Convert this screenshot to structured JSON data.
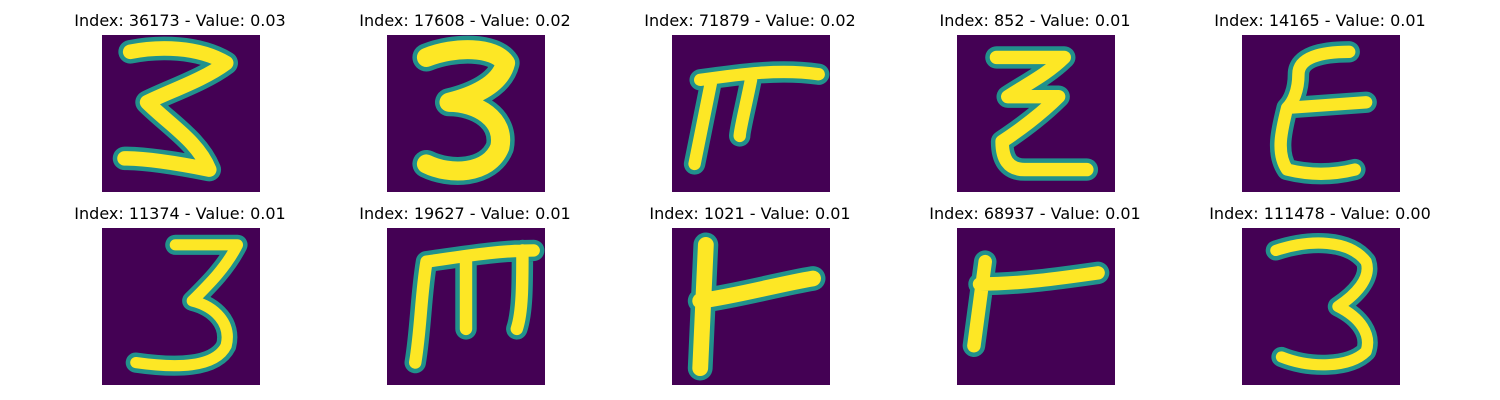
{
  "colors": {
    "background": "#440154",
    "stroke_main": "#fde725",
    "stroke_edge": "#21918c"
  },
  "panels": [
    {
      "title": "Index: 36173 - Value: 0.03",
      "glyph": "3"
    },
    {
      "title": "Index: 17608 - Value: 0.02",
      "glyph": "3"
    },
    {
      "title": "Index: 71879 - Value: 0.02",
      "glyph": "pi"
    },
    {
      "title": "Index: 852 - Value: 0.01",
      "glyph": "z"
    },
    {
      "title": "Index: 14165 - Value: 0.01",
      "glyph": "E"
    },
    {
      "title": "Index: 11374 - Value: 0.01",
      "glyph": "3"
    },
    {
      "title": "Index: 19627 - Value: 0.01",
      "glyph": "m"
    },
    {
      "title": "Index: 1021 - Value: 0.01",
      "glyph": "T-rotated"
    },
    {
      "title": "Index: 68937 - Value: 0.01",
      "glyph": "T-rotated"
    },
    {
      "title": "Index: 111478 - Value: 0.00",
      "glyph": "3"
    }
  ]
}
